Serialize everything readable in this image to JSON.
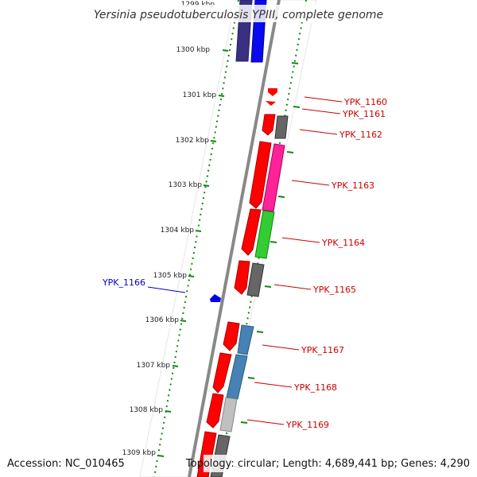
{
  "title": "Yersinia pseudotuberculosis YPIII, complete genome",
  "footer": {
    "accession": "Accession: NC_010465",
    "topology": "Topology: circular; Length: 4,689,441 bp; Genes: 4,290"
  },
  "colors": {
    "backbone": "#888888",
    "tick": "#118811",
    "forward_strand": "#ff0000",
    "label_forward": "#cc0000",
    "label_reverse": "#0000cc"
  },
  "kbp_labels": [
    "1299 kbp",
    "1300 kbp",
    "1301 kbp",
    "1302 kbp",
    "1303 kbp",
    "1304 kbp",
    "1305 kbp",
    "1306 kbp",
    "1307 kbp",
    "1308 kbp",
    "1309 kbp"
  ],
  "gene_labels": [
    "YPK_1160",
    "YPK_1161",
    "YPK_1162",
    "YPK_1163",
    "YPK_1164",
    "YPK_1165",
    "YPK_1166",
    "YPK_1167",
    "YPK_1168",
    "YPK_1169"
  ],
  "gene_label_colors": [
    "#cc0000",
    "#cc0000",
    "#cc0000",
    "#cc0000",
    "#cc0000",
    "#cc0000",
    "#0000cc",
    "#cc0000",
    "#cc0000",
    "#cc0000"
  ],
  "feature_colors": {
    "inner_navy": "#3a2f80",
    "inner_blue": "#0a0aee",
    "gray": "#666666",
    "magenta": "#ff2299",
    "green": "#33cc33",
    "steel_blue": "#4682b4",
    "light_gray": "#c0c0c0"
  }
}
